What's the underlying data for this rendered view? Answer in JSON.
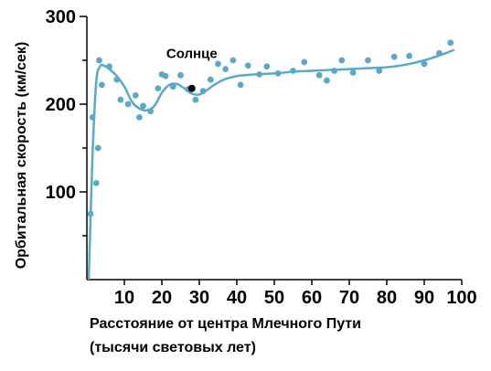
{
  "chart_data": {
    "type": "scatter",
    "xlabel_line1": "Расстояние от центра Млечного Пути",
    "xlabel_line2": "(тысячи световых лет)",
    "ylabel": "Орбитальная скорость (км/сек)",
    "xlim": [
      0,
      100
    ],
    "ylim": [
      0,
      300
    ],
    "x_ticks": [
      10,
      20,
      30,
      40,
      50,
      60,
      70,
      80,
      90,
      100
    ],
    "x_tick_labels": [
      "10",
      "20",
      "30",
      "40",
      "50",
      "60",
      "70",
      "80",
      "90",
      "100"
    ],
    "y_ticks": [
      100,
      200,
      300
    ],
    "y_tick_labels": [
      "100",
      "200",
      "300"
    ],
    "grid": false,
    "colors": {
      "points": "#5aa9c8",
      "curve": "#5aa9c8",
      "sun": "#000000",
      "axes": "#000000"
    },
    "annotation": {
      "label": "Солнце",
      "x": 28,
      "y": 218
    },
    "series": [
      {
        "kind": "points",
        "x": [
          1,
          1.5,
          2.5,
          3,
          3.3,
          4,
          6,
          8,
          9,
          11,
          13,
          14,
          15,
          17,
          19,
          20,
          21,
          23,
          25,
          27,
          29,
          31,
          33,
          35,
          37,
          39,
          41,
          43,
          46,
          48,
          51,
          55,
          58,
          62,
          64,
          66,
          68,
          71,
          75,
          78,
          82,
          86,
          90,
          94,
          97
        ],
        "y": [
          75,
          185,
          110,
          150,
          250,
          222,
          243,
          228,
          205,
          200,
          210,
          185,
          198,
          192,
          218,
          234,
          232,
          220,
          233,
          217,
          205,
          215,
          228,
          246,
          240,
          250,
          222,
          244,
          234,
          243,
          235,
          238,
          248,
          233,
          227,
          238,
          250,
          236,
          250,
          238,
          254,
          255,
          246,
          258,
          270
        ]
      },
      {
        "kind": "curve",
        "x": [
          0.5,
          1.5,
          2.5,
          3.5,
          4.5,
          6,
          8,
          10,
          12,
          14,
          16,
          18,
          20,
          22,
          24,
          26,
          28,
          30,
          32,
          34,
          36,
          38,
          40,
          42,
          45,
          50,
          55,
          60,
          65,
          70,
          75,
          80,
          85,
          90,
          95,
          98
        ],
        "y": [
          0,
          140,
          225,
          243,
          244,
          240,
          232,
          220,
          203,
          195,
          193,
          198,
          213,
          222,
          223,
          218,
          212,
          211,
          216,
          222,
          227,
          230,
          232,
          233,
          234,
          235,
          237,
          238,
          239,
          240,
          241,
          242,
          245,
          250,
          257,
          262
        ]
      }
    ]
  }
}
